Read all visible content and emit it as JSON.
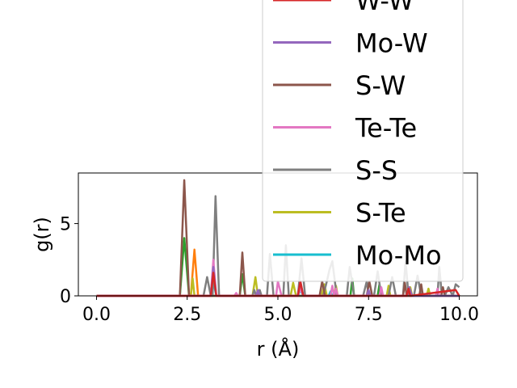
{
  "chart_data": {
    "type": "line",
    "title": "",
    "xlabel": "r (Å)",
    "ylabel": "g(r)",
    "xlim": [
      -0.5,
      10.5
    ],
    "ylim": [
      0,
      8.5
    ],
    "xticks": [
      "0.0",
      "2.5",
      "5.0",
      "7.5",
      "10.0"
    ],
    "yticks": [
      "0",
      "5"
    ],
    "legend_placement": "upper-right",
    "series": [
      {
        "name": "W-W",
        "color": "#d62728",
        "x": [
          0.0,
          2.2,
          3.15,
          3.22,
          3.3,
          5.55,
          5.62,
          5.7,
          8.55,
          8.6,
          8.65,
          9.9,
          10.0
        ],
        "y": [
          0.0,
          0.0,
          0.0,
          1.6,
          0.0,
          0.0,
          1.0,
          0.0,
          0.0,
          0.5,
          0.0,
          0.4,
          0.0
        ]
      },
      {
        "name": "Mo-W",
        "color": "#9467bd",
        "x": [
          0.0,
          2.25,
          3.15,
          3.22,
          3.3,
          4.4,
          4.45,
          4.5,
          5.55,
          5.62,
          5.7,
          7.45,
          7.5,
          7.55,
          8.55,
          8.62,
          8.7,
          10.0
        ],
        "y": [
          0.0,
          0.0,
          0.0,
          2.0,
          0.0,
          0.0,
          0.4,
          0.0,
          0.0,
          1.0,
          0.0,
          0.0,
          0.4,
          0.0,
          0.0,
          0.6,
          0.0,
          0.0
        ]
      },
      {
        "name": "S-W",
        "color": "#8c564b",
        "x": [
          0.0,
          2.3,
          2.42,
          2.55,
          3.95,
          4.02,
          4.1,
          6.15,
          6.22,
          6.3,
          7.45,
          7.52,
          7.6,
          8.45,
          8.5,
          8.55,
          8.9,
          8.95,
          9.0,
          9.5,
          9.55,
          9.6,
          10.0
        ],
        "y": [
          0.0,
          0.0,
          8.0,
          0.0,
          0.0,
          3.0,
          0.0,
          0.0,
          1.0,
          0.0,
          0.0,
          1.0,
          0.0,
          0.0,
          0.9,
          0.0,
          0.0,
          0.8,
          0.0,
          0.0,
          0.6,
          0.0,
          0.0
        ]
      },
      {
        "name": "Te-Te",
        "color": "#e377c2",
        "x": [
          0.0,
          3.15,
          3.22,
          3.3,
          3.8,
          3.85,
          3.9,
          4.95,
          5.0,
          5.1,
          5.55,
          5.62,
          5.7,
          6.45,
          6.5,
          6.55,
          6.6,
          6.65,
          6.7,
          7.8,
          7.85,
          7.9,
          9.35,
          9.4,
          9.45,
          10.0
        ],
        "y": [
          0.0,
          0.0,
          2.5,
          0.0,
          0.0,
          0.2,
          0.0,
          0.0,
          1.0,
          0.0,
          0.0,
          0.5,
          0.0,
          0.0,
          0.7,
          0.0,
          0.5,
          0.0,
          0.0,
          0.0,
          0.6,
          0.0,
          0.0,
          0.5,
          0.0,
          0.0
        ]
      },
      {
        "name": "S-S",
        "color": "#7f7f7f",
        "x": [
          0.0,
          2.95,
          3.05,
          3.15,
          3.2,
          3.28,
          3.38,
          4.3,
          4.35,
          4.4,
          4.45,
          4.5,
          4.55,
          4.7,
          4.78,
          4.88,
          5.15,
          5.22,
          5.3,
          5.55,
          5.65,
          5.75,
          6.25,
          6.35,
          6.42,
          6.5,
          6.62,
          6.9,
          6.98,
          7.1,
          7.35,
          7.45,
          7.5,
          7.65,
          7.75,
          7.85,
          8.05,
          8.15,
          8.25,
          8.45,
          8.52,
          8.6,
          8.75,
          8.85,
          8.95,
          9.4,
          9.45,
          9.52,
          9.6,
          9.7,
          9.82,
          9.9,
          10.0
        ],
        "y": [
          0.0,
          0.0,
          1.3,
          0.0,
          0.0,
          6.9,
          0.0,
          0.0,
          0.4,
          0.0,
          0.0,
          0.4,
          0.0,
          0.0,
          2.9,
          0.0,
          0.0,
          3.5,
          0.0,
          0.0,
          2.6,
          0.0,
          0.0,
          1.0,
          1.8,
          2.4,
          0.0,
          0.0,
          2.0,
          0.0,
          0.0,
          1.0,
          0.0,
          0.0,
          1.7,
          0.0,
          0.0,
          1.3,
          0.0,
          0.0,
          2.4,
          0.0,
          0.0,
          1.4,
          0.0,
          0.0,
          2.0,
          0.0,
          0.0,
          0.6,
          0.0,
          0.8,
          0.6
        ]
      },
      {
        "name": "S-Te",
        "color": "#bcbd22",
        "x": [
          0.0,
          2.6,
          2.65,
          2.7,
          4.3,
          4.38,
          4.45,
          5.35,
          5.42,
          5.5,
          6.2,
          6.28,
          6.35,
          6.55,
          6.6,
          6.65,
          8.0,
          8.05,
          8.1,
          8.6,
          8.65,
          8.7,
          9.1,
          9.15,
          9.2,
          10.0
        ],
        "y": [
          0.0,
          0.0,
          1.2,
          0.0,
          0.0,
          1.3,
          0.0,
          0.0,
          0.9,
          0.0,
          0.0,
          0.8,
          0.0,
          0.0,
          0.7,
          0.0,
          0.0,
          0.7,
          0.0,
          0.0,
          0.6,
          0.0,
          0.0,
          0.5,
          0.0,
          0.0
        ]
      },
      {
        "name": "Mo-Mo",
        "color": "#17becf",
        "x": [
          0.0,
          3.15,
          3.22,
          3.3,
          5.55,
          5.62,
          5.7,
          6.4,
          6.45,
          6.5,
          8.55,
          8.62,
          8.7,
          10.0
        ],
        "y": [
          0.0,
          0.0,
          1.0,
          0.0,
          0.0,
          0.4,
          0.0,
          0.0,
          0.3,
          0.0,
          0.0,
          0.3,
          0.0,
          0.0
        ]
      },
      {
        "name": "",
        "color": "#ff7f0e",
        "x": [
          0.0,
          2.6,
          2.7,
          2.8,
          10.0
        ],
        "y": [
          0.0,
          0.0,
          3.2,
          0.0,
          0.0
        ]
      },
      {
        "name": "",
        "color": "#2ca02c",
        "x": [
          0.0,
          2.3,
          2.42,
          2.55,
          3.95,
          4.02,
          4.1,
          7.0,
          7.05,
          7.1,
          7.75,
          7.8,
          7.85,
          10.0
        ],
        "y": [
          0.0,
          0.0,
          4.0,
          0.0,
          0.0,
          1.5,
          0.0,
          0.0,
          1.2,
          0.0,
          0.0,
          0.8,
          0.0,
          0.0
        ]
      }
    ],
    "legend_items": [
      "W-W",
      "Mo-W",
      "S-W",
      "Te-Te",
      "S-S",
      "S-Te",
      "Mo-Mo"
    ]
  }
}
